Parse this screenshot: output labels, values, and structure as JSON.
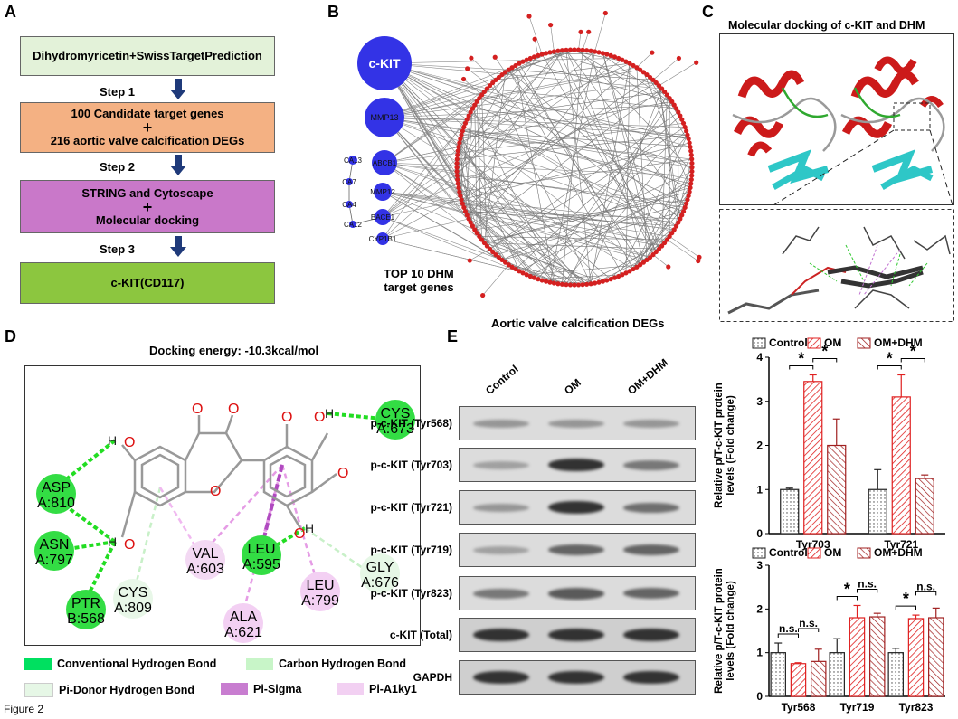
{
  "figure_label": "Figure 2",
  "panels": {
    "A": {
      "label": "A",
      "boxes": [
        "Dihydromyricetin+SwissTargetPrediction",
        "100 Candidate target genes",
        "216 aortic valve calcification DEGs",
        "STRING and Cytoscape",
        "Molecular docking",
        "c-KIT(CD117)"
      ],
      "plus": "+",
      "steps": [
        "Step 1",
        "Step 2",
        "Step 3"
      ],
      "colors": {
        "box1": "#e3f2d9",
        "box2": "#f4b183",
        "box3": "#c978c9",
        "box4": "#8cc63f",
        "arrow": "#1f3a7a"
      }
    },
    "B": {
      "label": "B",
      "genes": [
        "c-KIT",
        "MMP13",
        "ABCB1",
        "MMP12",
        "BACE1",
        "CYP1B1",
        "CA13",
        "CA7",
        "CA4",
        "CA12"
      ],
      "top_caption_1": "TOP 10 DHM",
      "top_caption_2": "target genes",
      "degs_caption": "Aortic valve calcification DEGs",
      "colors": {
        "node_blue": "#3333e6",
        "node_red": "#d42020",
        "edge": "#777777"
      }
    },
    "C": {
      "label": "C",
      "title": "Molecular docking of c-KIT and DHM"
    },
    "D": {
      "label": "D",
      "title": "Docking energy: -10.3kcal/mol",
      "residues": [
        {
          "name": "CYS",
          "id": "A:673"
        },
        {
          "name": "ASP",
          "id": "A:810"
        },
        {
          "name": "ASN",
          "id": "A:797"
        },
        {
          "name": "PTR",
          "id": "B:568"
        },
        {
          "name": "CYS",
          "id": "A:809"
        },
        {
          "name": "VAL",
          "id": "A:603"
        },
        {
          "name": "LEU",
          "id": "A:595"
        },
        {
          "name": "ALA",
          "id": "A:621"
        },
        {
          "name": "LEU",
          "id": "A:799"
        },
        {
          "name": "GLY",
          "id": "A:676"
        }
      ],
      "atoms": {
        "H": "H",
        "O": "O"
      },
      "legend": [
        "Conventional Hydrogen Bond",
        "Carbon Hydrogen Bond",
        "Pi-Donor Hydrogen Bond",
        "Pi-Sigma",
        "Pi-A1ky1"
      ],
      "colors": {
        "conv": "#00e060",
        "carbon": "#c8f5c8",
        "pidonor": "#e6f7e6",
        "pisigma": "#c87dd0",
        "pialkyl": "#f2d0f2"
      }
    },
    "E": {
      "label": "E",
      "lanes": [
        "Control",
        "OM",
        "OM+DHM"
      ],
      "blots": [
        "p-c-KIT (Tyr568)",
        "p-c-KIT (Tyr703)",
        "p-c-KIT (Tyr721)",
        "p-c-KIT (Tyr719)",
        "p-c-KIT (Tyr823)",
        "c-KIT (Total)",
        "GAPDH"
      ]
    }
  },
  "chart_data": [
    {
      "type": "bar",
      "categories": [
        "Tyr703",
        "Tyr721"
      ],
      "series": [
        {
          "name": "Control",
          "values": [
            1.0,
            1.0
          ],
          "errors": [
            0.03,
            0.45
          ]
        },
        {
          "name": "OM",
          "values": [
            3.45,
            3.1
          ],
          "errors": [
            0.15,
            0.5
          ]
        },
        {
          "name": "OM+DHM",
          "values": [
            2.0,
            1.25
          ],
          "errors": [
            0.6,
            0.08
          ]
        }
      ],
      "ylabel": "Relative p/T-c-KIT protein levels (Fold change)",
      "ylim": [
        0,
        4
      ],
      "yticks": [
        "0",
        "1",
        "2",
        "3",
        "4"
      ],
      "significance": [
        "*",
        "*",
        "*",
        "*"
      ],
      "legend": "top"
    },
    {
      "type": "bar",
      "categories": [
        "Tyr568",
        "Tyr719",
        "Tyr823"
      ],
      "series": [
        {
          "name": "Control",
          "values": [
            1.0,
            1.0,
            1.0
          ],
          "errors": [
            0.22,
            0.32,
            0.1
          ]
        },
        {
          "name": "OM",
          "values": [
            0.75,
            1.8,
            1.78
          ],
          "errors": [
            0.02,
            0.28,
            0.08
          ]
        },
        {
          "name": "OM+DHM",
          "values": [
            0.8,
            1.82,
            1.8
          ],
          "errors": [
            0.28,
            0.08,
            0.22
          ]
        }
      ],
      "ylabel": "Relative p/T-c-KIT protein levels (Fold change)",
      "ylim": [
        0,
        3
      ],
      "yticks": [
        "0",
        "1",
        "2",
        "3"
      ],
      "significance": [
        "n.s.",
        "n.s.",
        "*",
        "n.s.",
        "*",
        "n.s."
      ],
      "legend": "top"
    }
  ]
}
